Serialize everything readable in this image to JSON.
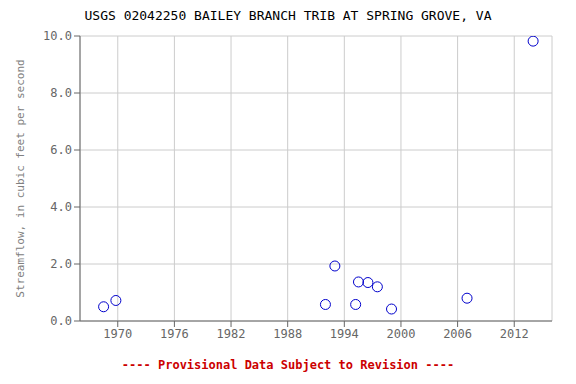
{
  "chart_data": {
    "type": "scatter",
    "title": "USGS 02042250 BAILEY BRANCH TRIB AT SPRING GROVE, VA",
    "ylabel": "Streamflow, in cubic feet per second",
    "x": [
      1968.5,
      1969.8,
      1992.0,
      1993.0,
      1995.5,
      1996.5,
      1997.5,
      1995.2,
      1999.0,
      2007.0,
      2014.0
    ],
    "values": [
      0.5,
      0.72,
      0.58,
      1.93,
      1.37,
      1.35,
      1.2,
      0.58,
      0.42,
      0.8,
      9.82
    ],
    "color": "#0000cc",
    "marker": "open_circle",
    "xlim": [
      1966,
      2016
    ],
    "xticks": [
      1970,
      1976,
      1982,
      1988,
      1994,
      2000,
      2006,
      2012
    ],
    "ylim": [
      0,
      10
    ],
    "yticks": [
      {
        "value": 0,
        "label": "0.0"
      },
      {
        "value": 2,
        "label": "2.0"
      },
      {
        "value": 4,
        "label": "4.0"
      },
      {
        "value": 6,
        "label": "6.0"
      },
      {
        "value": 8,
        "label": "8.0"
      },
      {
        "value": 10,
        "label": "10.0"
      }
    ],
    "grid": true,
    "annotations": [
      {
        "text": "---- Provisional Data Subject to Revision ----",
        "color": "#cc0000"
      }
    ]
  }
}
